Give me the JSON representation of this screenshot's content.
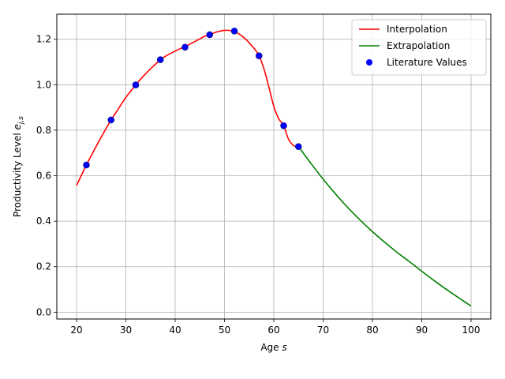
{
  "chart_data": {
    "type": "line",
    "xlabel": "Age",
    "xlabel_var": "s",
    "ylabel": "Productivity Level",
    "ylabel_var": "e",
    "ylabel_sub": "j,s",
    "xlim": [
      16.0,
      104.0
    ],
    "ylim": [
      -0.03,
      1.31
    ],
    "xticks": [
      20,
      30,
      40,
      50,
      60,
      70,
      80,
      90,
      100
    ],
    "yticks": [
      0.0,
      0.2,
      0.4,
      0.6,
      0.8,
      1.0,
      1.2
    ],
    "xtick_labels": [
      "20",
      "30",
      "40",
      "50",
      "60",
      "70",
      "80",
      "90",
      "100"
    ],
    "ytick_labels": [
      "0.0",
      "0.2",
      "0.4",
      "0.6",
      "0.8",
      "1.0",
      "1.2"
    ],
    "grid": true,
    "legend_position": "top-right",
    "series": [
      {
        "name": "Interpolation",
        "kind": "line",
        "color": "#ff0000",
        "x": [
          20,
          22,
          24,
          26,
          27,
          28,
          30,
          32,
          34,
          36,
          37,
          38,
          40,
          42,
          44,
          46,
          47,
          48,
          50,
          52,
          54,
          56,
          57,
          58,
          59,
          60,
          61,
          62,
          63,
          64,
          65
        ],
        "y": [
          0.557,
          0.647,
          0.73,
          0.808,
          0.845,
          0.878,
          0.944,
          0.999,
          1.048,
          1.09,
          1.11,
          1.125,
          1.148,
          1.168,
          1.19,
          1.213,
          1.22,
          1.229,
          1.239,
          1.234,
          1.206,
          1.16,
          1.127,
          1.07,
          0.99,
          0.905,
          0.85,
          0.82,
          0.76,
          0.733,
          0.728
        ]
      },
      {
        "name": "Extrapolation",
        "kind": "line",
        "color": "#008000",
        "x": [
          65,
          67.5,
          70,
          72.5,
          75,
          77.5,
          80,
          82.5,
          85,
          87.5,
          90,
          92.5,
          95,
          97.5,
          100
        ],
        "y": [
          0.728,
          0.655,
          0.585,
          0.52,
          0.46,
          0.405,
          0.354,
          0.307,
          0.263,
          0.222,
          0.18,
          0.139,
          0.1,
          0.063,
          0.027
        ]
      },
      {
        "name": "Literature Values",
        "kind": "scatter",
        "color": "#0000ff",
        "x": [
          22,
          27,
          32,
          37,
          42,
          47,
          52,
          57,
          62,
          65
        ],
        "y": [
          0.647,
          0.845,
          0.999,
          1.11,
          1.165,
          1.22,
          1.236,
          1.127,
          0.82,
          0.728
        ]
      }
    ]
  }
}
